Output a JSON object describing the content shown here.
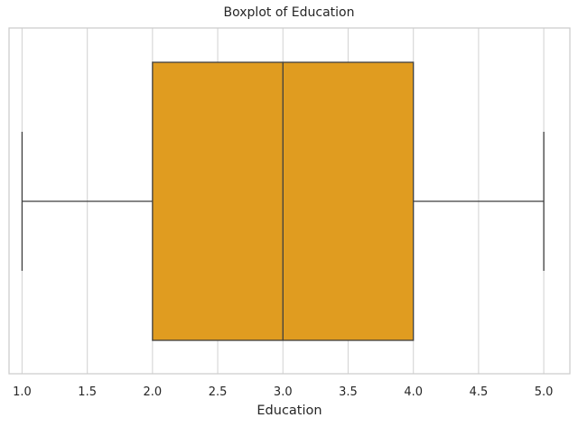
{
  "chart_data": {
    "type": "boxplot",
    "title": "Boxplot of Education",
    "xlabel": "Education",
    "ylabel": "",
    "xlim": [
      0.9,
      5.2
    ],
    "x_ticks": [
      "1.0",
      "1.5",
      "2.0",
      "2.5",
      "3.0",
      "3.5",
      "4.0",
      "4.5",
      "5.0"
    ],
    "orientation": "horizontal",
    "grid": true,
    "series": [
      {
        "min": 1.0,
        "q1": 2.0,
        "median": 3.0,
        "q3": 4.0,
        "max": 5.0,
        "color": "#e09c20"
      }
    ]
  }
}
